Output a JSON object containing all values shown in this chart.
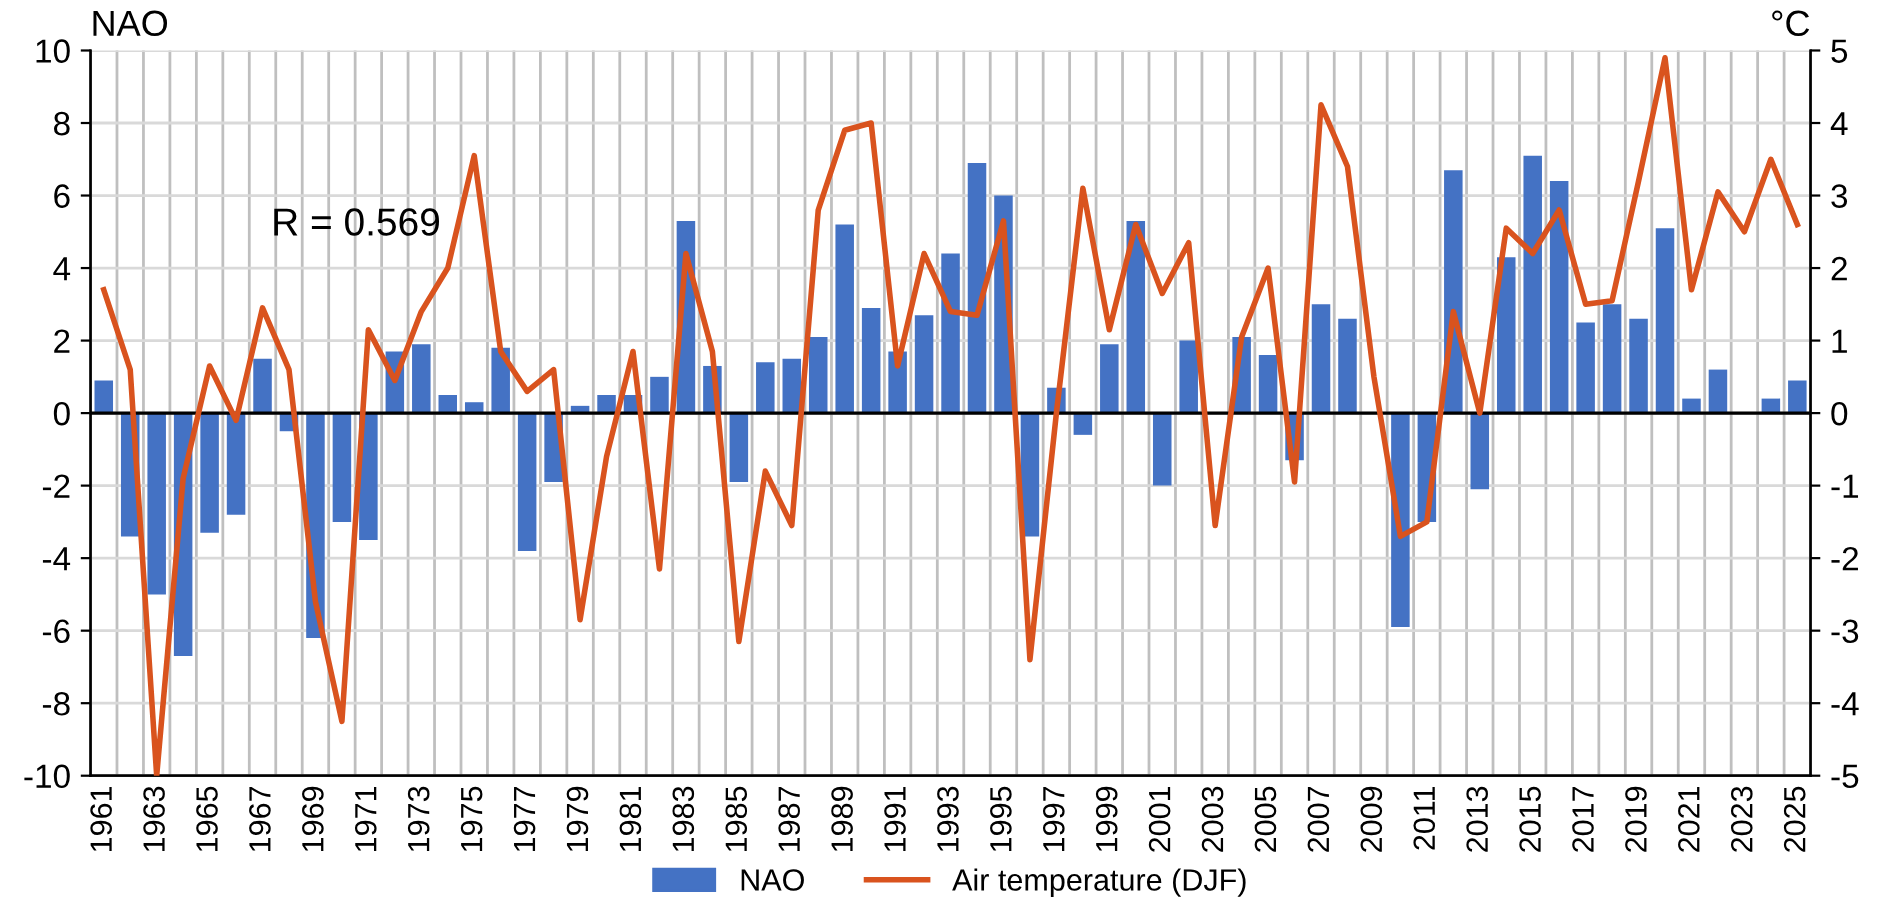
{
  "chart_data": {
    "type": "bar",
    "categories": [
      "1961",
      null,
      "1963",
      null,
      "1965",
      null,
      "1967",
      null,
      "1969",
      null,
      "1971",
      null,
      "1973",
      null,
      "1975",
      null,
      "1977",
      null,
      "1979",
      null,
      "1981",
      null,
      "1983",
      null,
      "1985",
      null,
      "1987",
      null,
      "1989",
      null,
      "1991",
      null,
      "1993",
      null,
      "1995",
      null,
      "1997",
      null,
      "1999",
      null,
      "2001",
      null,
      "2003",
      null,
      "2005",
      null,
      "2007",
      null,
      "2009",
      null,
      "2011",
      null,
      "2013",
      null,
      "2015",
      null,
      "2017",
      null,
      "2019",
      null,
      "2021",
      null,
      "2023",
      null,
      "2025"
    ],
    "series": [
      {
        "name": "NAO",
        "color": "#4472c4",
        "values": [
          0.9,
          -3.4,
          -5.0,
          -6.7,
          -3.3,
          -2.8,
          1.5,
          -0.5,
          -6.2,
          -3.0,
          -3.5,
          1.7,
          1.9,
          0.5,
          0.3,
          1.8,
          -3.8,
          -1.9,
          0.2,
          0.5,
          0.5,
          1.0,
          5.3,
          1.3,
          -1.9,
          1.4,
          1.5,
          2.1,
          5.2,
          2.9,
          1.7,
          2.7,
          4.4,
          6.9,
          6.0,
          -3.4,
          0.7,
          -0.6,
          1.9,
          5.3,
          -2.0,
          2.0,
          null,
          2.1,
          1.6,
          -1.3,
          3.0,
          2.6,
          null,
          -5.9,
          -3.0,
          6.7,
          -2.1,
          4.3,
          7.1,
          6.4,
          2.5,
          3.0,
          2.6,
          5.1,
          0.4,
          1.2,
          null,
          0.4,
          0.9
        ]
      },
      {
        "name": "Air temperature (DJF)",
        "type": "line",
        "axis": "y2",
        "color": "#d9531e",
        "values": [
          1.7,
          0.6,
          -5.0,
          -0.9,
          0.65,
          -0.1,
          1.45,
          0.6,
          -2.6,
          -4.25,
          1.15,
          0.45,
          1.4,
          2.0,
          3.55,
          0.85,
          0.3,
          0.6,
          -2.85,
          -0.6,
          0.85,
          -2.15,
          2.2,
          0.85,
          -3.15,
          -0.8,
          -1.55,
          2.8,
          3.9,
          4.0,
          0.65,
          2.2,
          1.4,
          1.35,
          2.65,
          -3.4,
          0.0,
          3.1,
          1.15,
          2.6,
          1.65,
          2.35,
          -1.55,
          1.05,
          2.0,
          -0.95,
          4.25,
          3.4,
          0.5,
          -1.7,
          -1.5,
          1.4,
          0.0,
          2.55,
          2.2,
          2.8,
          1.5,
          1.55,
          3.2,
          4.9,
          1.7,
          3.05,
          2.5,
          3.5,
          2.6
        ]
      }
    ],
    "ylabel": "NAO",
    "y2label": "°C",
    "ylim": [
      -10,
      10
    ],
    "yticks": [
      -10,
      -8,
      -6,
      -4,
      -2,
      0,
      2,
      4,
      6,
      8,
      10
    ],
    "y2lim": [
      -5,
      5
    ],
    "y2ticks": [
      -5,
      -4,
      -3,
      -2,
      -1,
      0,
      1,
      2,
      3,
      4,
      5
    ],
    "annotations": [
      "R = 0.569"
    ],
    "grid": true,
    "legend": "bottom",
    "marker": "none",
    "line_style": "solid"
  }
}
